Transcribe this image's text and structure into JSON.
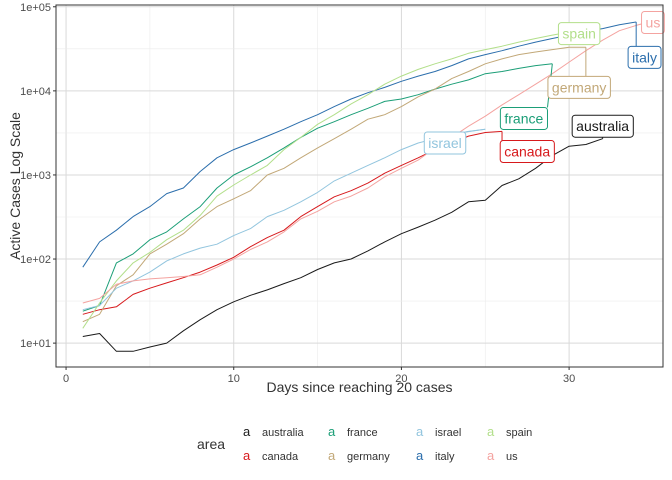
{
  "chart_data": {
    "type": "line",
    "title": "",
    "xlabel": "Days since reaching 20 cases",
    "ylabel": "Active Cases Log Scale",
    "x_scale": "linear",
    "y_scale": "log10",
    "xlim": [
      -0.6,
      35.6
    ],
    "ylim": [
      5.2,
      105000
    ],
    "x_ticks": [
      0,
      10,
      20,
      30
    ],
    "x_tick_labels": [
      "0",
      "10",
      "20",
      "30"
    ],
    "y_ticks": [
      10,
      100,
      1000,
      10000,
      100000
    ],
    "y_tick_labels": [
      "1e+01",
      "1e+02",
      "1e+03",
      "1e+04",
      "1e+05"
    ],
    "grid": true,
    "legend": {
      "title": "area",
      "position": "bottom",
      "key_glyph": "a",
      "entries": [
        "australia",
        "canada",
        "france",
        "germany",
        "israel",
        "italy",
        "spain",
        "us"
      ]
    },
    "series": [
      {
        "name": "australia",
        "color": "#1a1a1a",
        "x": [
          1,
          2,
          3,
          4,
          5,
          6,
          7,
          8,
          9,
          10,
          11,
          12,
          13,
          14,
          15,
          16,
          17,
          18,
          19,
          20,
          21,
          22,
          23,
          24,
          25,
          26,
          27,
          28,
          29,
          30,
          31,
          32
        ],
        "y": [
          12,
          13,
          8,
          8,
          9,
          10,
          14,
          19,
          25,
          31,
          37,
          43,
          51,
          60,
          75,
          90,
          100,
          125,
          160,
          200,
          240,
          290,
          360,
          480,
          500,
          750,
          900,
          1200,
          1700,
          2200,
          2300,
          2700
        ],
        "end_label": {
          "text": "australia",
          "x": 32,
          "y": 3800
        }
      },
      {
        "name": "canada",
        "color": "#d7191c",
        "x": [
          1,
          2,
          3,
          4,
          5,
          6,
          7,
          8,
          9,
          10,
          11,
          12,
          13,
          14,
          15,
          16,
          17,
          18,
          19,
          20,
          21,
          22,
          23,
          24,
          25,
          26
        ],
        "y": [
          22,
          25,
          27,
          38,
          45,
          52,
          60,
          70,
          85,
          105,
          140,
          180,
          220,
          320,
          420,
          550,
          650,
          800,
          1050,
          1300,
          1600,
          2000,
          2400,
          2900,
          3200,
          3300
        ],
        "end_label": {
          "text": "canada",
          "x": 27.5,
          "y": 1900
        }
      },
      {
        "name": "france",
        "color": "#1b9e77",
        "x": [
          1,
          2,
          3,
          4,
          5,
          6,
          7,
          8,
          9,
          10,
          11,
          12,
          13,
          14,
          15,
          16,
          17,
          18,
          19,
          20,
          21,
          22,
          23,
          24,
          25,
          26,
          27,
          28,
          29
        ],
        "y": [
          24,
          28,
          90,
          115,
          170,
          210,
          300,
          420,
          700,
          1000,
          1250,
          1600,
          2100,
          2800,
          3600,
          4300,
          5200,
          6200,
          7500,
          8000,
          9000,
          10500,
          12000,
          13500,
          16000,
          17000,
          18500,
          20000,
          21000
        ],
        "end_label": {
          "text": "france",
          "x": 27.3,
          "y": 4700
        }
      },
      {
        "name": "germany",
        "color": "#c2a878",
        "x": [
          1,
          2,
          3,
          4,
          5,
          6,
          7,
          8,
          9,
          10,
          11,
          12,
          13,
          14,
          15,
          16,
          17,
          18,
          19,
          20,
          21,
          22,
          23,
          24,
          25,
          26,
          27,
          28,
          29,
          30,
          31
        ],
        "y": [
          18,
          22,
          48,
          65,
          115,
          150,
          200,
          300,
          420,
          520,
          650,
          1000,
          1200,
          1600,
          2100,
          2700,
          3500,
          4600,
          5200,
          6500,
          8500,
          10500,
          14000,
          17000,
          21000,
          24000,
          27000,
          29000,
          31000,
          33000,
          33000
        ],
        "end_label": {
          "text": "germany",
          "x": 30.6,
          "y": 11000
        }
      },
      {
        "name": "israel",
        "color": "#92c5de",
        "x": [
          1,
          2,
          3,
          4,
          5,
          6,
          7,
          8,
          9,
          10,
          11,
          12,
          13,
          14,
          15,
          16,
          17,
          18,
          19,
          20,
          21,
          22,
          23,
          24,
          25
        ],
        "y": [
          25,
          28,
          45,
          55,
          70,
          95,
          115,
          135,
          150,
          190,
          230,
          320,
          380,
          480,
          620,
          850,
          1050,
          1300,
          1600,
          2000,
          2400,
          2700,
          3000,
          3300,
          3500
        ],
        "end_label": {
          "text": "israel",
          "x": 22.6,
          "y": 2400
        }
      },
      {
        "name": "italy",
        "color": "#2b6eac",
        "x": [
          1,
          2,
          3,
          4,
          5,
          6,
          7,
          8,
          9,
          10,
          11,
          12,
          13,
          14,
          15,
          16,
          17,
          18,
          19,
          20,
          21,
          22,
          23,
          24,
          25,
          26,
          27,
          28,
          29,
          30,
          31,
          32,
          33,
          34
        ],
        "y": [
          80,
          160,
          220,
          320,
          420,
          600,
          700,
          1100,
          1600,
          2000,
          2400,
          2900,
          3500,
          4300,
          5200,
          6500,
          8000,
          9500,
          11000,
          13000,
          15000,
          17000,
          20000,
          24000,
          27000,
          30000,
          34000,
          38000,
          42000,
          46000,
          51000,
          55000,
          61000,
          66000
        ],
        "end_label": {
          "text": "italy",
          "x": 34.5,
          "y": 25000
        }
      },
      {
        "name": "spain",
        "color": "#b2df8a",
        "x": [
          1,
          2,
          3,
          4,
          5,
          6,
          7,
          8,
          9,
          10,
          11,
          12,
          13,
          14,
          15,
          16,
          17,
          18,
          19,
          20,
          21,
          22,
          23,
          24,
          25,
          26,
          27,
          28,
          29,
          30,
          31
        ],
        "y": [
          15,
          30,
          55,
          90,
          120,
          170,
          220,
          330,
          560,
          760,
          1000,
          1300,
          2000,
          2800,
          4000,
          5200,
          7000,
          9000,
          12000,
          15000,
          18000,
          21000,
          24000,
          28000,
          31000,
          34000,
          38000,
          42000,
          46000,
          50000,
          53000
        ],
        "end_label": {
          "text": "spain",
          "x": 30.6,
          "y": 48000
        }
      },
      {
        "name": "us",
        "color": "#f4a3a0",
        "x": [
          1,
          2,
          3,
          4,
          5,
          6,
          7,
          8,
          9,
          10,
          11,
          12,
          13,
          14,
          15,
          16,
          17,
          18,
          19,
          20,
          21,
          22,
          23,
          24,
          25,
          26,
          27,
          28,
          29,
          30,
          31,
          32,
          33,
          34,
          35
        ],
        "y": [
          30,
          34,
          50,
          55,
          58,
          60,
          62,
          65,
          80,
          100,
          130,
          160,
          210,
          300,
          370,
          480,
          560,
          700,
          950,
          1200,
          1500,
          2100,
          2800,
          3800,
          5000,
          6800,
          9000,
          12000,
          16000,
          22000,
          30000,
          40000,
          52000,
          60000,
          68000
        ],
        "end_label": {
          "text": "us",
          "x": 35.0,
          "y": 65000
        }
      }
    ]
  }
}
